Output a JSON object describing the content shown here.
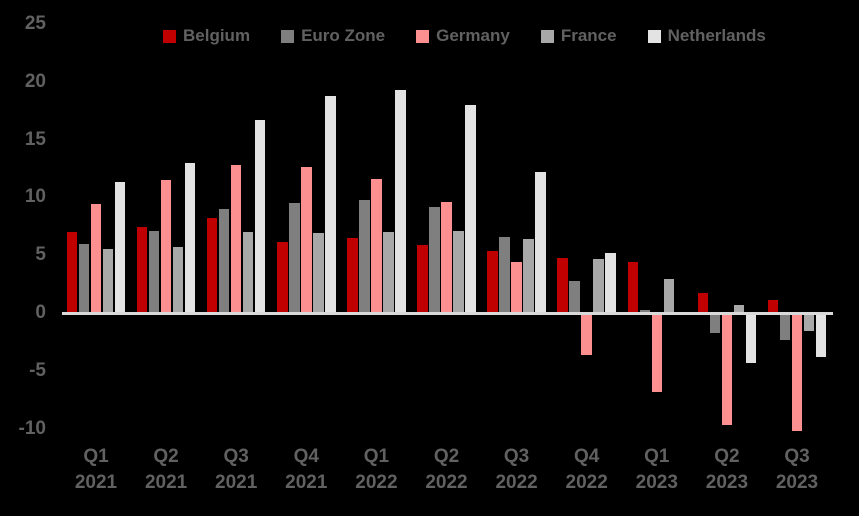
{
  "chart_data": {
    "type": "bar",
    "title": "",
    "xlabel": "",
    "ylabel": "",
    "background_color": "#000000",
    "text_color": "#616161",
    "axis_line_color": "#d9d9d9",
    "grid": false,
    "legend_position": "top",
    "y_axis": {
      "ticks": [
        25,
        20,
        15,
        10,
        5,
        0,
        -5,
        -10
      ],
      "min": -10,
      "max": 25
    },
    "categories": [
      {
        "quarter": "Q1",
        "year": "2021"
      },
      {
        "quarter": "Q2",
        "year": "2021"
      },
      {
        "quarter": "Q3",
        "year": "2021"
      },
      {
        "quarter": "Q4",
        "year": "2021"
      },
      {
        "quarter": "Q1",
        "year": "2022"
      },
      {
        "quarter": "Q2",
        "year": "2022"
      },
      {
        "quarter": "Q3",
        "year": "2022"
      },
      {
        "quarter": "Q4",
        "year": "2022"
      },
      {
        "quarter": "Q1",
        "year": "2023"
      },
      {
        "quarter": "Q2",
        "year": "2023"
      },
      {
        "quarter": "Q3",
        "year": "2023"
      }
    ],
    "series": [
      {
        "name": "Belgium",
        "color": "#c00000",
        "values": [
          7.0,
          7.4,
          8.2,
          6.1,
          6.5,
          5.9,
          5.4,
          4.8,
          4.4,
          1.7,
          1.1
        ]
      },
      {
        "name": "Euro Zone",
        "color": "#7f7f7f",
        "values": [
          6.0,
          7.1,
          9.0,
          9.5,
          9.8,
          9.2,
          6.6,
          2.8,
          0.3,
          -1.7,
          -2.3
        ]
      },
      {
        "name": "Germany",
        "color": "#fc8f8f",
        "values": [
          9.4,
          11.5,
          12.8,
          12.6,
          11.6,
          9.6,
          4.4,
          -3.6,
          -6.8,
          -9.7,
          -10.2
        ]
      },
      {
        "name": "France",
        "color": "#a8a8a8",
        "values": [
          5.5,
          5.7,
          7.0,
          6.9,
          7.0,
          7.1,
          6.4,
          4.7,
          2.9,
          0.7,
          -1.6
        ]
      },
      {
        "name": "Netherlands",
        "color": "#e4e3e3",
        "values": [
          11.3,
          13.0,
          16.7,
          18.8,
          19.3,
          18.0,
          12.2,
          5.2,
          0.0,
          -4.3,
          -3.8
        ]
      }
    ]
  }
}
